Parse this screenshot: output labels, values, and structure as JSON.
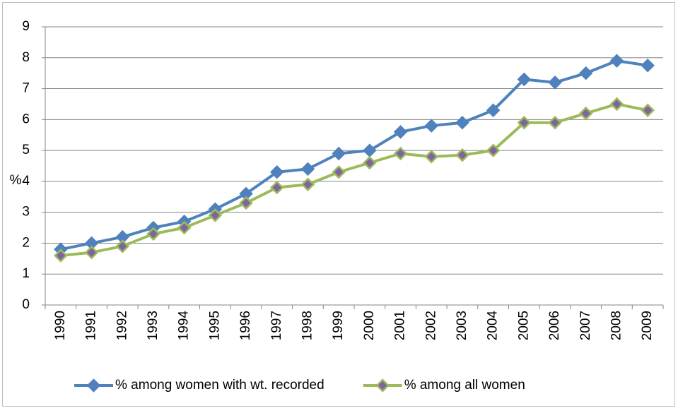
{
  "chart_data": {
    "type": "line",
    "y_label": "%",
    "categories": [
      "1990",
      "1991",
      "1992",
      "1993",
      "1994",
      "1995",
      "1996",
      "1997",
      "1998",
      "1999",
      "2000",
      "2001",
      "2002",
      "2003",
      "2004",
      "2005",
      "2006",
      "2007",
      "2008",
      "2009"
    ],
    "series": [
      {
        "name": "% among women with wt. recorded",
        "color": "#4f81bd",
        "marker_fill": "#4f81bd",
        "values": [
          1.8,
          2.0,
          2.2,
          2.5,
          2.7,
          3.1,
          3.6,
          4.3,
          4.4,
          4.9,
          5.0,
          5.6,
          5.8,
          5.9,
          6.3,
          7.3,
          7.2,
          7.5,
          7.9,
          7.75
        ]
      },
      {
        "name": "% among all women",
        "color": "#9bbb59",
        "marker_fill": "#8064a2",
        "values": [
          1.6,
          1.7,
          1.9,
          2.3,
          2.5,
          2.9,
          3.3,
          3.8,
          3.9,
          4.3,
          4.6,
          4.9,
          4.8,
          4.85,
          5.0,
          5.9,
          5.9,
          6.2,
          6.5,
          6.3
        ]
      }
    ],
    "ylim": [
      0,
      9
    ],
    "yticks": [
      0,
      1,
      2,
      3,
      4,
      5,
      6,
      7,
      8,
      9
    ],
    "grid": true,
    "legend": "bottom"
  }
}
